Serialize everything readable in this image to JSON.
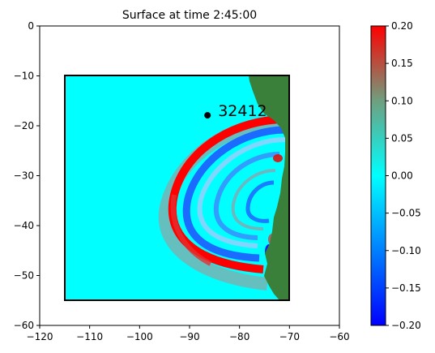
{
  "chart_data": {
    "type": "heatmap",
    "title": "Surface at time 2:45:00",
    "xlabel": "",
    "ylabel": "",
    "xlim": [
      -120,
      -60
    ],
    "ylim": [
      -60,
      0
    ],
    "xticks": [
      -120,
      -110,
      -100,
      -90,
      -80,
      -70,
      -60
    ],
    "yticks": [
      0,
      -10,
      -20,
      -30,
      -40,
      -50,
      -60
    ],
    "domain_box": {
      "x": [
        -115,
        -70
      ],
      "y": [
        -55,
        -10
      ]
    },
    "gauge": {
      "label": "32412",
      "x": -86.4,
      "y": -17.9
    },
    "land_color": "#3a7f3a",
    "colorbar": {
      "vmin": -0.2,
      "vmax": 0.2,
      "ticks": [
        "0.20",
        "0.15",
        "0.10",
        "0.05",
        "0.00",
        "−0.05",
        "−0.10",
        "−0.15",
        "−0.20"
      ],
      "stops": [
        {
          "value": -0.2,
          "color": "#0000ff"
        },
        {
          "value": 0.0,
          "color": "#00ffff"
        },
        {
          "value": 0.1,
          "color": "#6f9f7f"
        },
        {
          "value": 0.2,
          "color": "#ff0000"
        }
      ]
    }
  }
}
